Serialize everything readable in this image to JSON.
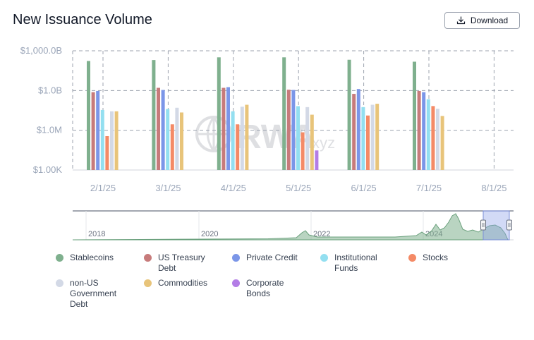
{
  "title": "New Issuance Volume",
  "download_label": "Download",
  "watermark": {
    "text_main": "RWA",
    "text_sub": ".xyz"
  },
  "chart_data": {
    "type": "bar",
    "yscale": "log",
    "y_ticks": [
      {
        "value": 1000,
        "label": "$1.00K"
      },
      {
        "value": 1000000,
        "label": "$1.0M"
      },
      {
        "value": 1000000000,
        "label": "$1.0B"
      },
      {
        "value": 1000000000000,
        "label": "$1,000.0B"
      }
    ],
    "ylim": [
      1000,
      1000000000000
    ],
    "x_ticks": [
      "2/1/25",
      "3/1/25",
      "4/1/25",
      "5/1/25",
      "6/1/25",
      "7/1/25",
      "8/1/25"
    ],
    "categories": [
      "Feb 2025",
      "Mar 2025",
      "Apr 2025",
      "May 2025",
      "Jun 2025",
      "Jul 2025"
    ],
    "series": [
      {
        "name": "Stablecoins",
        "color": "#7fb08e",
        "values": [
          170000000000,
          200000000000,
          320000000000,
          320000000000,
          210000000000,
          150000000000
        ]
      },
      {
        "name": "US Treasury Debt",
        "color": "#c77b7b",
        "values": [
          750000000,
          1600000000,
          1600000000,
          1150000000,
          560000000,
          930000000
        ]
      },
      {
        "name": "Private Credit",
        "color": "#7b96e8",
        "values": [
          930000000,
          1100000000,
          1800000000,
          1100000000,
          1300000000,
          750000000
        ]
      },
      {
        "name": "Institutional Funds",
        "color": "#93dff0",
        "values": [
          34000000,
          40000000,
          27000000,
          66000000,
          56000000,
          220000000
        ]
      },
      {
        "name": "Stocks",
        "color": "#f48a66",
        "values": [
          360000,
          2800000,
          2800000,
          700000,
          13000000,
          67000000
        ]
      },
      {
        "name": "non-US Government Debt",
        "color": "#d3d9e6",
        "values": [
          27000000,
          50000000,
          60000000,
          56000000,
          84000000,
          42000000
        ]
      },
      {
        "name": "Commodities",
        "color": "#e8c47a",
        "values": [
          27000000,
          22000000,
          84000000,
          15000000,
          100000000,
          12000000
        ]
      },
      {
        "name": "Corporate Bonds",
        "color": "#b37de6",
        "values": [
          null,
          null,
          null,
          30000,
          null,
          null
        ]
      }
    ],
    "navigator": {
      "year_labels": [
        "2018",
        "2020",
        "2022",
        "2024"
      ],
      "selected_range": [
        "2025-01",
        "2025-08"
      ]
    },
    "legend_position": "bottom",
    "grid": true
  }
}
